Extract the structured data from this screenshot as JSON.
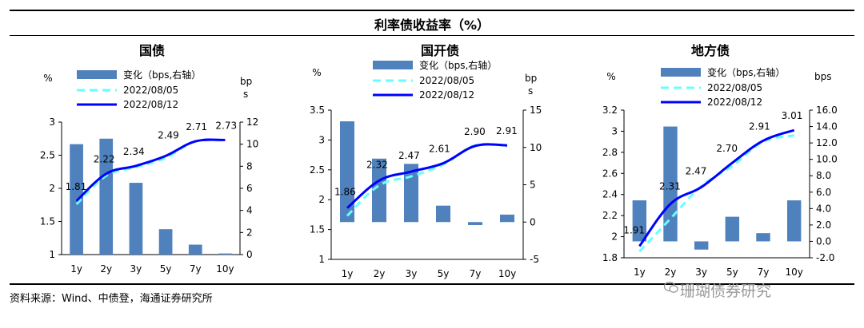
{
  "header": {
    "title": "利率债收益率（%）"
  },
  "footer": {
    "source": "资料来源：Wind、中债登，海通证券研究所",
    "watermark": "珊瑚债券研究"
  },
  "colors": {
    "bar": "#4f81bd",
    "current": "#0000ff",
    "previous": "#66ffff"
  },
  "chart_data": [
    {
      "type": "bar+line",
      "title": "国债",
      "categories": [
        "1y",
        "2y",
        "3y",
        "5y",
        "7y",
        "10y"
      ],
      "left_axis": {
        "label": "%",
        "ylim": [
          1,
          3
        ],
        "ticks": [
          "1",
          "1.5",
          "2",
          "2.5",
          "3"
        ]
      },
      "right_axis": {
        "label_line1": "bp",
        "label_line2": "s",
        "ylim": [
          0,
          12
        ],
        "ticks": [
          "0",
          "2",
          "4",
          "6",
          "8",
          "10",
          "12"
        ]
      },
      "series": [
        {
          "name": "变化（bps,右轴）",
          "kind": "bar",
          "axis": "right",
          "values": [
            10,
            10.5,
            6.5,
            2.3,
            0.9,
            0.1
          ]
        },
        {
          "name": "2022/08/05",
          "kind": "dashed",
          "axis": "left",
          "values": [
            1.76,
            2.19,
            2.32,
            2.46,
            2.71,
            2.72
          ]
        },
        {
          "name": "2022/08/12",
          "kind": "solid",
          "axis": "left",
          "values": [
            1.81,
            2.22,
            2.34,
            2.49,
            2.71,
            2.73
          ]
        }
      ],
      "data_labels": [
        "1.81",
        "2.22",
        "2.34",
        "2.49",
        "2.71",
        "2.73"
      ]
    },
    {
      "type": "bar+line",
      "title": "国开债",
      "categories": [
        "1y",
        "2y",
        "3y",
        "5y",
        "7y",
        "10y"
      ],
      "left_axis": {
        "label": "%",
        "ylim": [
          1,
          3.5
        ],
        "ticks": [
          "1",
          "1.5",
          "2",
          "2.5",
          "3",
          "3.5"
        ]
      },
      "right_axis": {
        "label_line1": "bp",
        "label_line2": "s",
        "ylim": [
          -5,
          15
        ],
        "ticks": [
          "-5",
          "0",
          "5",
          "10",
          "15"
        ]
      },
      "series": [
        {
          "name": "变化（bps,右轴）",
          "kind": "bar",
          "axis": "right",
          "values": [
            13.5,
            8.5,
            7.8,
            2.2,
            -0.4,
            1.0
          ]
        },
        {
          "name": "2022/08/05",
          "kind": "dashed",
          "axis": "left",
          "values": [
            1.73,
            2.24,
            2.39,
            2.59,
            2.91,
            2.9
          ]
        },
        {
          "name": "2022/08/12",
          "kind": "solid",
          "axis": "left",
          "values": [
            1.86,
            2.32,
            2.47,
            2.61,
            2.9,
            2.91
          ]
        }
      ],
      "data_labels": [
        "1.86",
        "2.32",
        "2.47",
        "2.61",
        "2.90",
        "2.91"
      ]
    },
    {
      "type": "bar+line",
      "title": "地方债",
      "categories": [
        "1y",
        "2y",
        "3y",
        "5y",
        "7y",
        "10y"
      ],
      "left_axis": {
        "label": "%",
        "ylim": [
          1.8,
          3.2
        ],
        "ticks": [
          "1.8",
          "2",
          "2.2",
          "2.4",
          "2.6",
          "2.8",
          "3",
          "3.2"
        ]
      },
      "right_axis": {
        "label_line1": "bps",
        "label_line2": "",
        "ylim": [
          -2,
          16
        ],
        "ticks": [
          "-2.0",
          "0.0",
          "2.0",
          "4.0",
          "6.0",
          "8.0",
          "10.0",
          "12.0",
          "14.0",
          "16.0"
        ]
      },
      "series": [
        {
          "name": "变化（bps,右轴）",
          "kind": "bar",
          "axis": "right",
          "values": [
            5,
            14,
            -1,
            3,
            1,
            5
          ]
        },
        {
          "name": "2022/08/05",
          "kind": "dashed",
          "axis": "left",
          "values": [
            1.86,
            2.17,
            2.48,
            2.67,
            2.9,
            2.96
          ]
        },
        {
          "name": "2022/08/12",
          "kind": "solid",
          "axis": "left",
          "values": [
            1.91,
            2.31,
            2.47,
            2.7,
            2.91,
            3.01
          ]
        }
      ],
      "data_labels": [
        "1.91",
        "2.31",
        "2.47",
        "2.70",
        "2.91",
        "3.01"
      ]
    }
  ]
}
